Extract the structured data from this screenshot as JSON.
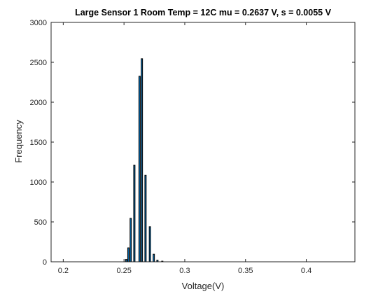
{
  "chart_data": {
    "type": "bar",
    "title": "Large Sensor 1 Room Temp = 12C mu = 0.2637 V, s = 0.0055 V",
    "xlabel": "Voltage(V)",
    "ylabel": "Frequency",
    "xlim": [
      0.19,
      0.44
    ],
    "ylim": [
      0,
      3000
    ],
    "xticks": [
      0.2,
      0.25,
      0.3,
      0.35,
      0.4
    ],
    "xtick_labels": [
      "0.2",
      "0.25",
      "0.3",
      "0.35",
      "0.4"
    ],
    "yticks": [
      0,
      500,
      1000,
      1500,
      2000,
      2500,
      3000
    ],
    "ytick_labels": [
      "0",
      "500",
      "1000",
      "1500",
      "2000",
      "2500",
      "3000"
    ],
    "grid": false,
    "bar_width": 0.0011,
    "bars": [
      {
        "x": 0.2518,
        "value": 30
      },
      {
        "x": 0.2536,
        "value": 175
      },
      {
        "x": 0.2555,
        "value": 545
      },
      {
        "x": 0.2585,
        "value": 1210
      },
      {
        "x": 0.2628,
        "value": 2325
      },
      {
        "x": 0.2647,
        "value": 2545
      },
      {
        "x": 0.2677,
        "value": 1085
      },
      {
        "x": 0.2713,
        "value": 440
      },
      {
        "x": 0.2745,
        "value": 95
      },
      {
        "x": 0.2775,
        "value": 20
      },
      {
        "x": 0.2815,
        "value": 8
      }
    ],
    "colors": {
      "bar_fill": "#0072BD",
      "bar_edge": "#000000",
      "axes": "#262626"
    }
  }
}
